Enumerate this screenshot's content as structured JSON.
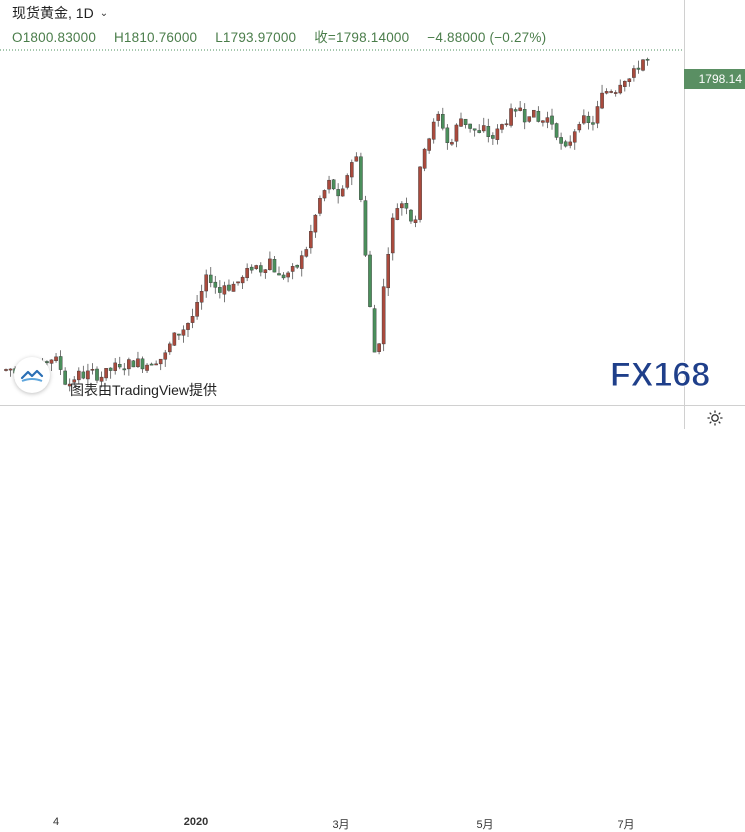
{
  "header": {
    "title": "现货黄金, 1D",
    "open_label": "O1800.83000",
    "high_label": "H1810.76000",
    "low_label": "L1793.97000",
    "close_label": "收=1798.14000",
    "change_label": "−4.88000 (−0.27%)"
  },
  "price_axis": {
    "last_price": "1798.14"
  },
  "time_axis": {
    "ticks": [
      "4",
      "2020",
      "3月",
      "5月",
      "7月"
    ]
  },
  "branding": {
    "tv_credit": "图表由TradingView提供",
    "watermark": "FX168"
  },
  "colors": {
    "up": "#a94a3d",
    "down": "#4b8f5c",
    "last_price_bg": "#5a8f63",
    "price_line": "#4b8f5c"
  },
  "icons": {
    "settings": "gear-icon",
    "tv_logo": "cloud-icon"
  },
  "chart_data": {
    "type": "candlestick",
    "title": "现货黄金, 1D",
    "last": {
      "open": 1800.83,
      "high": 1810.76,
      "low": 1793.97,
      "close": 1798.14,
      "change": -4.88,
      "change_pct": -0.27
    },
    "x_ticks": [
      "4",
      "2020",
      "3月",
      "5月",
      "7月"
    ],
    "ylim": [
      1435,
      1825
    ],
    "last_price": 1798.14,
    "trend_points": [
      [
        0,
        1463
      ],
      [
        5,
        1462
      ],
      [
        10,
        1464
      ],
      [
        15,
        1460
      ],
      [
        20,
        1466
      ],
      [
        25,
        1470
      ],
      [
        30,
        1473
      ],
      [
        35,
        1465
      ],
      [
        40,
        1462
      ],
      [
        45,
        1470
      ],
      [
        50,
        1476
      ],
      [
        55,
        1474
      ],
      [
        60,
        1466
      ],
      [
        65,
        1450
      ],
      [
        70,
        1448
      ],
      [
        75,
        1455
      ],
      [
        80,
        1458
      ],
      [
        85,
        1456
      ],
      [
        90,
        1460
      ],
      [
        95,
        1458
      ],
      [
        100,
        1455
      ],
      [
        105,
        1458
      ],
      [
        110,
        1462
      ],
      [
        115,
        1466
      ],
      [
        120,
        1462
      ],
      [
        125,
        1468
      ],
      [
        130,
        1470
      ],
      [
        135,
        1472
      ],
      [
        140,
        1470
      ],
      [
        145,
        1468
      ],
      [
        150,
        1472
      ],
      [
        155,
        1474
      ],
      [
        160,
        1475
      ],
      [
        165,
        1478
      ],
      [
        170,
        1490
      ],
      [
        175,
        1500
      ],
      [
        180,
        1504
      ],
      [
        185,
        1510
      ],
      [
        190,
        1518
      ],
      [
        195,
        1525
      ],
      [
        200,
        1540
      ],
      [
        205,
        1560
      ],
      [
        210,
        1565
      ],
      [
        215,
        1555
      ],
      [
        220,
        1548
      ],
      [
        225,
        1558
      ],
      [
        230,
        1553
      ],
      [
        235,
        1558
      ],
      [
        240,
        1560
      ],
      [
        245,
        1565
      ],
      [
        250,
        1575
      ],
      [
        255,
        1578
      ],
      [
        260,
        1572
      ],
      [
        265,
        1578
      ],
      [
        270,
        1584
      ],
      [
        275,
        1572
      ],
      [
        280,
        1562
      ],
      [
        285,
        1568
      ],
      [
        290,
        1570
      ],
      [
        295,
        1572
      ],
      [
        300,
        1582
      ],
      [
        305,
        1592
      ],
      [
        310,
        1610
      ],
      [
        315,
        1630
      ],
      [
        320,
        1650
      ],
      [
        325,
        1660
      ],
      [
        330,
        1670
      ],
      [
        335,
        1660
      ],
      [
        340,
        1642
      ],
      [
        345,
        1670
      ],
      [
        350,
        1688
      ],
      [
        355,
        1700
      ],
      [
        358,
        1690
      ],
      [
        362,
        1640
      ],
      [
        366,
        1580
      ],
      [
        370,
        1530
      ],
      [
        373,
        1490
      ],
      [
        376,
        1475
      ],
      [
        379,
        1495
      ],
      [
        382,
        1530
      ],
      [
        385,
        1570
      ],
      [
        390,
        1610
      ],
      [
        395,
        1640
      ],
      [
        400,
        1645
      ],
      [
        405,
        1650
      ],
      [
        410,
        1630
      ],
      [
        415,
        1625
      ],
      [
        420,
        1680
      ],
      [
        425,
        1712
      ],
      [
        430,
        1720
      ],
      [
        435,
        1735
      ],
      [
        440,
        1745
      ],
      [
        445,
        1720
      ],
      [
        450,
        1705
      ],
      [
        455,
        1725
      ],
      [
        460,
        1740
      ],
      [
        465,
        1735
      ],
      [
        470,
        1730
      ],
      [
        475,
        1725
      ],
      [
        480,
        1720
      ],
      [
        485,
        1730
      ],
      [
        490,
        1715
      ],
      [
        495,
        1720
      ],
      [
        500,
        1728
      ],
      [
        505,
        1735
      ],
      [
        510,
        1745
      ],
      [
        515,
        1740
      ],
      [
        520,
        1752
      ],
      [
        525,
        1740
      ],
      [
        530,
        1748
      ],
      [
        535,
        1740
      ],
      [
        540,
        1732
      ],
      [
        545,
        1740
      ],
      [
        550,
        1738
      ],
      [
        555,
        1730
      ],
      [
        560,
        1710
      ],
      [
        565,
        1702
      ],
      [
        570,
        1715
      ],
      [
        575,
        1728
      ],
      [
        580,
        1740
      ],
      [
        585,
        1735
      ],
      [
        590,
        1730
      ],
      [
        595,
        1738
      ],
      [
        600,
        1760
      ],
      [
        605,
        1768
      ],
      [
        610,
        1772
      ],
      [
        615,
        1770
      ],
      [
        620,
        1780
      ],
      [
        625,
        1784
      ],
      [
        630,
        1782
      ],
      [
        635,
        1790
      ],
      [
        640,
        1800
      ],
      [
        645,
        1806
      ],
      [
        650,
        1798
      ]
    ]
  }
}
